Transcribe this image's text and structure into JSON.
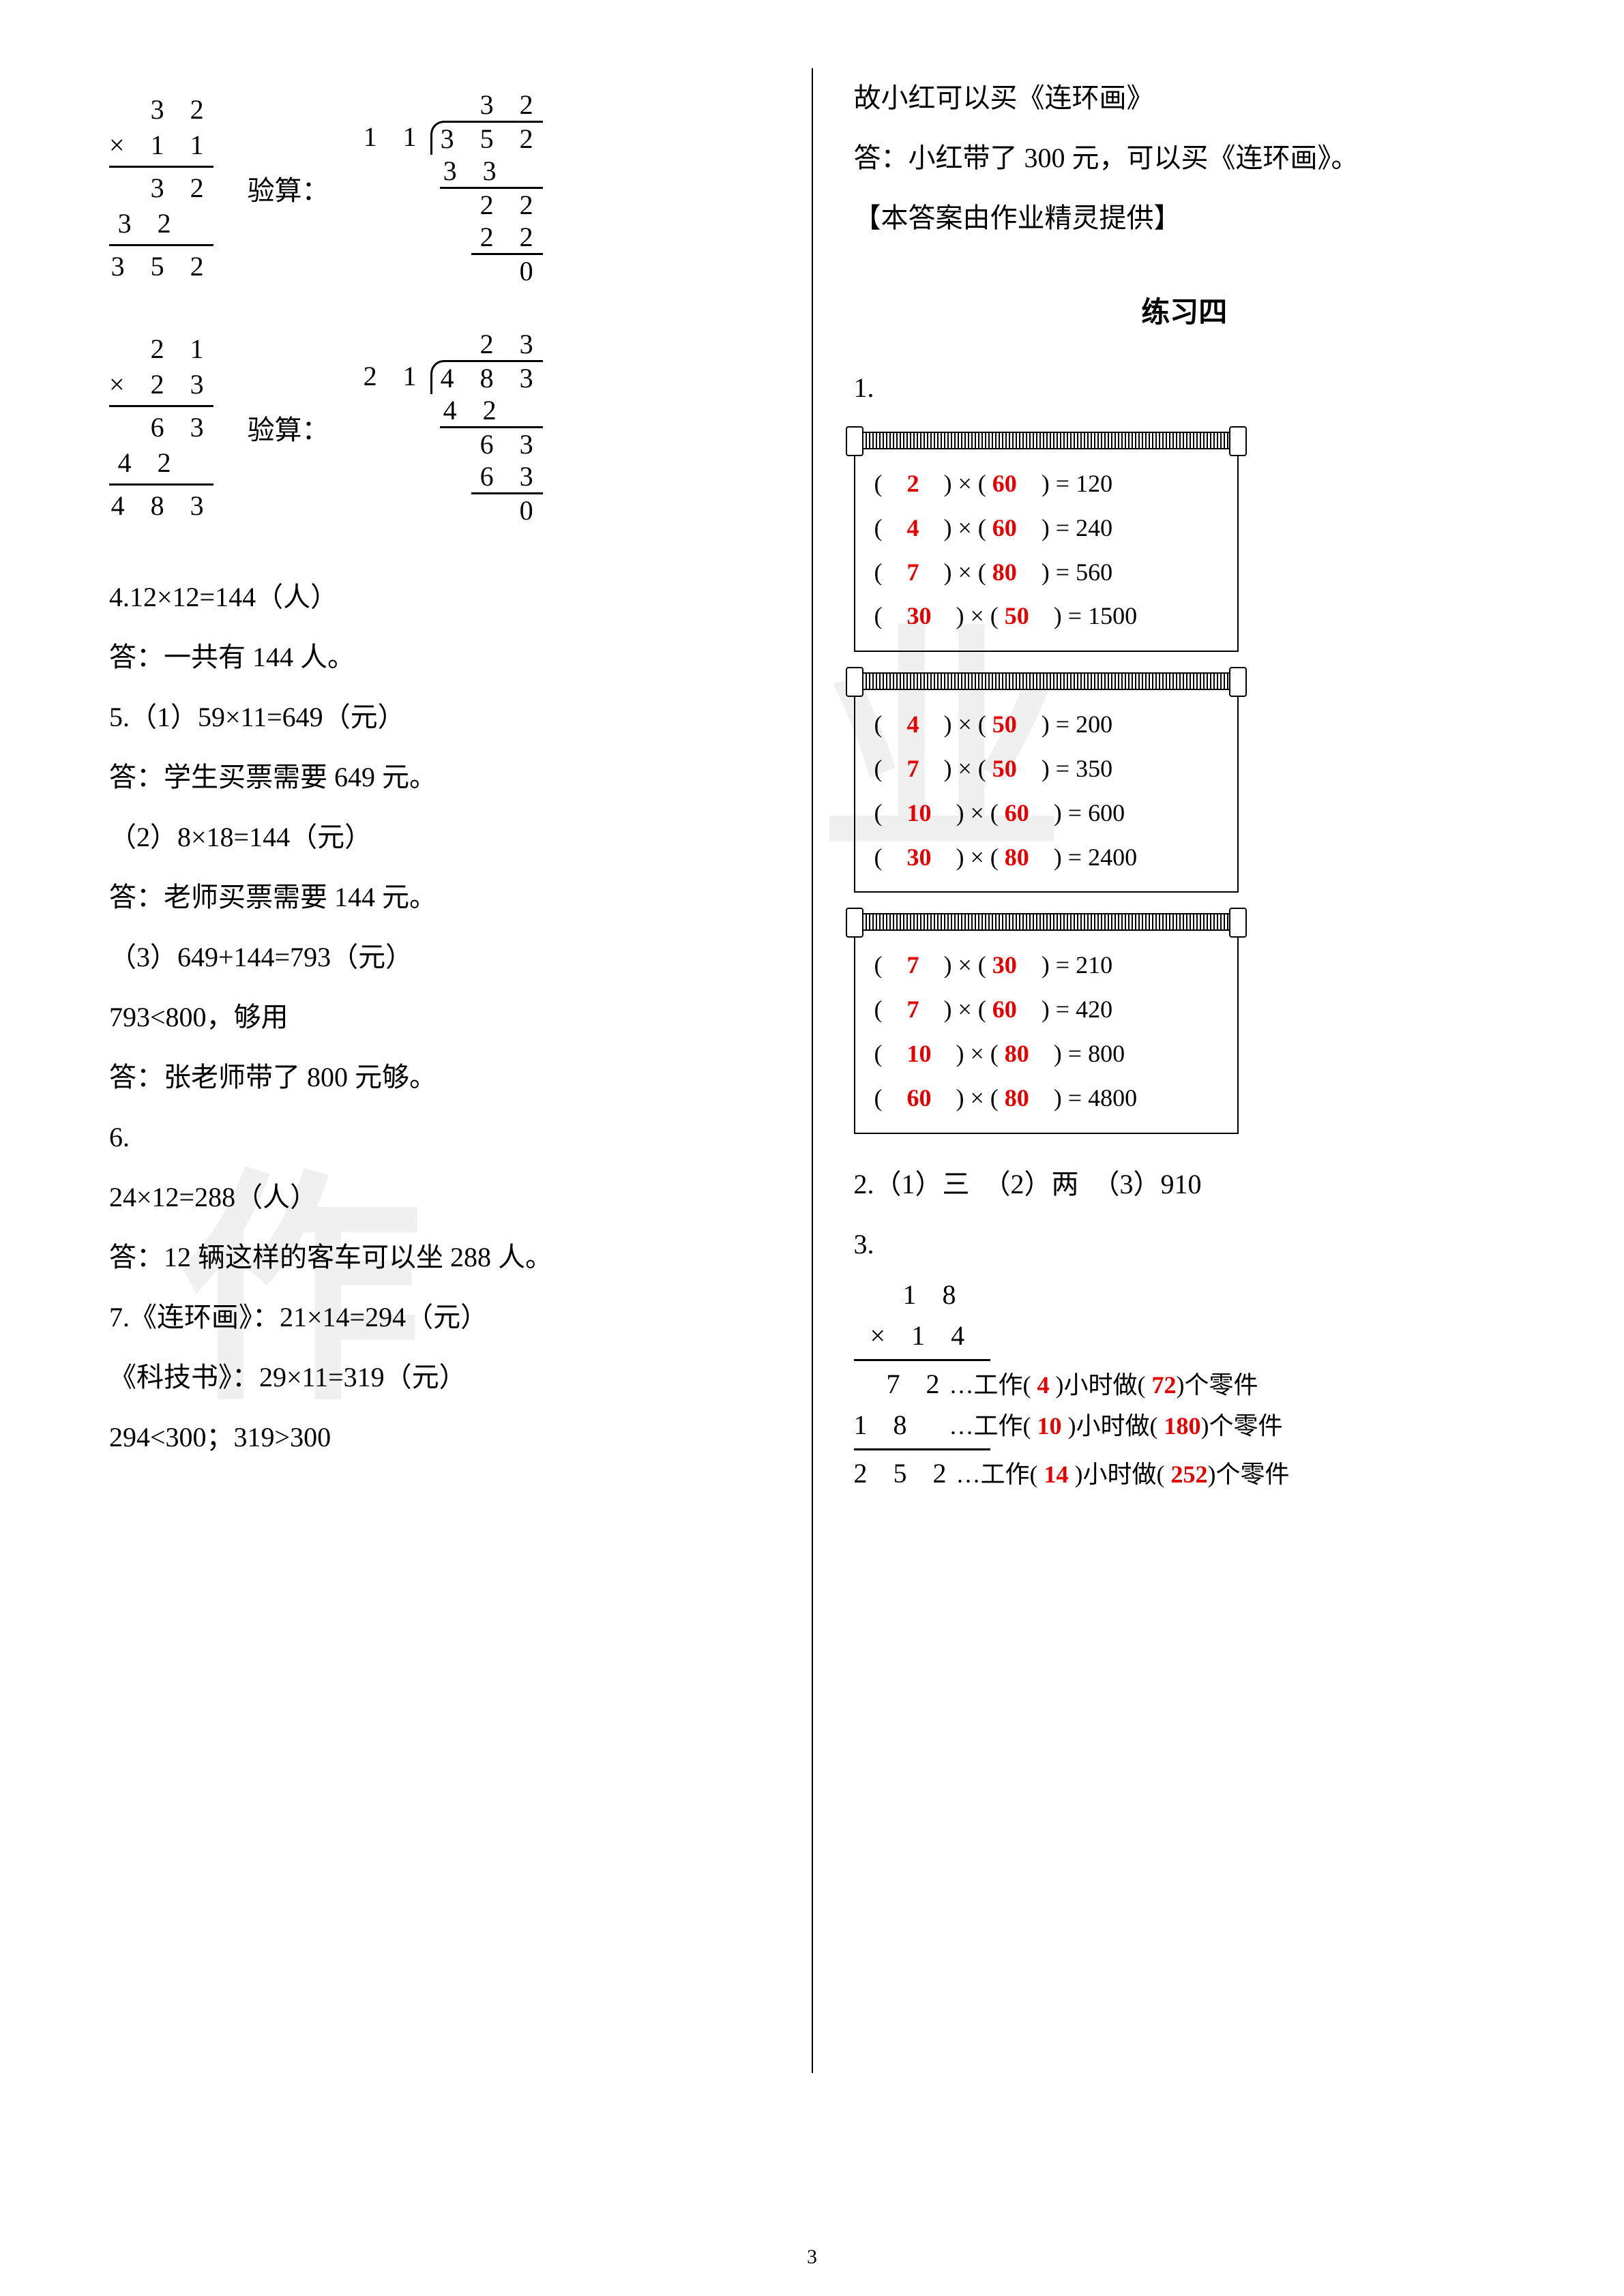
{
  "page_number": "3",
  "watermark_chars": [
    "作",
    "业"
  ],
  "left": {
    "calc1": {
      "mult": {
        "a": "3 2",
        "b": "1 1",
        "p1": "3 2",
        "p2": "3 2",
        "res": "3 5 2"
      },
      "verify_label": "验算：",
      "div": {
        "quot": "3 2",
        "divisor": "1 1",
        "dividend": "3 5 2",
        "s1": "3 3",
        "r1": "2 2",
        "s2": "2 2",
        "r2": "0"
      }
    },
    "calc2": {
      "mult": {
        "a": "2 1",
        "b": "2 3",
        "p1": "6 3",
        "p2": "4 2",
        "res": "4 8 3"
      },
      "verify_label": "验算：",
      "div": {
        "quot": "2 3",
        "divisor": "2 1",
        "dividend": "4 8 3",
        "s1": "4 2",
        "r1": "6 3",
        "s2": "6 3",
        "r2": "0"
      }
    },
    "lines": [
      "4.12×12=144（人）",
      "答：一共有 144 人。",
      "5.（1）59×11=649（元）",
      "答：学生买票需要 649 元。",
      "（2）8×18=144（元）",
      "答：老师买票需要 144 元。",
      "（3）649+144=793（元）",
      "793<800，够用",
      "答：张老师带了 800 元够。",
      "6.",
      "24×12=288（人）",
      "答：12 辆这样的客车可以坐 288 人。",
      "7.《连环画》：21×14=294（元）",
      "《科技书》：29×11=319（元）",
      "294<300；319>300"
    ]
  },
  "right": {
    "top_lines": [
      "故小红可以买《连环画》",
      "答：小红带了 300 元，可以买《连环画》。",
      "【本答案由作业精灵提供】"
    ],
    "section_title": "练习四",
    "q1_label": "1.",
    "scrolls": [
      [
        {
          "a": "2",
          "b": "60",
          "r": "120"
        },
        {
          "a": "4",
          "b": "60",
          "r": "240"
        },
        {
          "a": "7",
          "b": "80",
          "r": "560"
        },
        {
          "a": "30",
          "b": "50",
          "r": "1500"
        }
      ],
      [
        {
          "a": "4",
          "b": "50",
          "r": "200"
        },
        {
          "a": "7",
          "b": "50",
          "r": "350"
        },
        {
          "a": "10",
          "b": "60",
          "r": "600"
        },
        {
          "a": "30",
          "b": "80",
          "r": "2400"
        }
      ],
      [
        {
          "a": "7",
          "b": "30",
          "r": "210"
        },
        {
          "a": "7",
          "b": "60",
          "r": "420"
        },
        {
          "a": "10",
          "b": "80",
          "r": "800"
        },
        {
          "a": "60",
          "b": "80",
          "r": "4800"
        }
      ]
    ],
    "q2": "2.（1）三　（2）两　（3）910",
    "q3_label": "3.",
    "q3": {
      "a": "1 8",
      "b": "1 4",
      "rows": [
        {
          "digits": "  7 2",
          "pre": "…工作(",
          "h": "4",
          "mid": ")小时做(",
          "p": "72",
          "post": ")个零件"
        },
        {
          "digits": "1 8  ",
          "pre": "…工作(",
          "h": "10",
          "mid": ")小时做(",
          "p": "180",
          "post": ")个零件"
        },
        {
          "digits": "2 5 2",
          "pre": "…工作(",
          "h": "14",
          "mid": ")小时做(",
          "p": "252",
          "post": ")个零件"
        }
      ]
    }
  },
  "colors": {
    "red": "#e60000",
    "text": "#000000",
    "bg": "#ffffff",
    "wm": "#f0f0f0"
  }
}
